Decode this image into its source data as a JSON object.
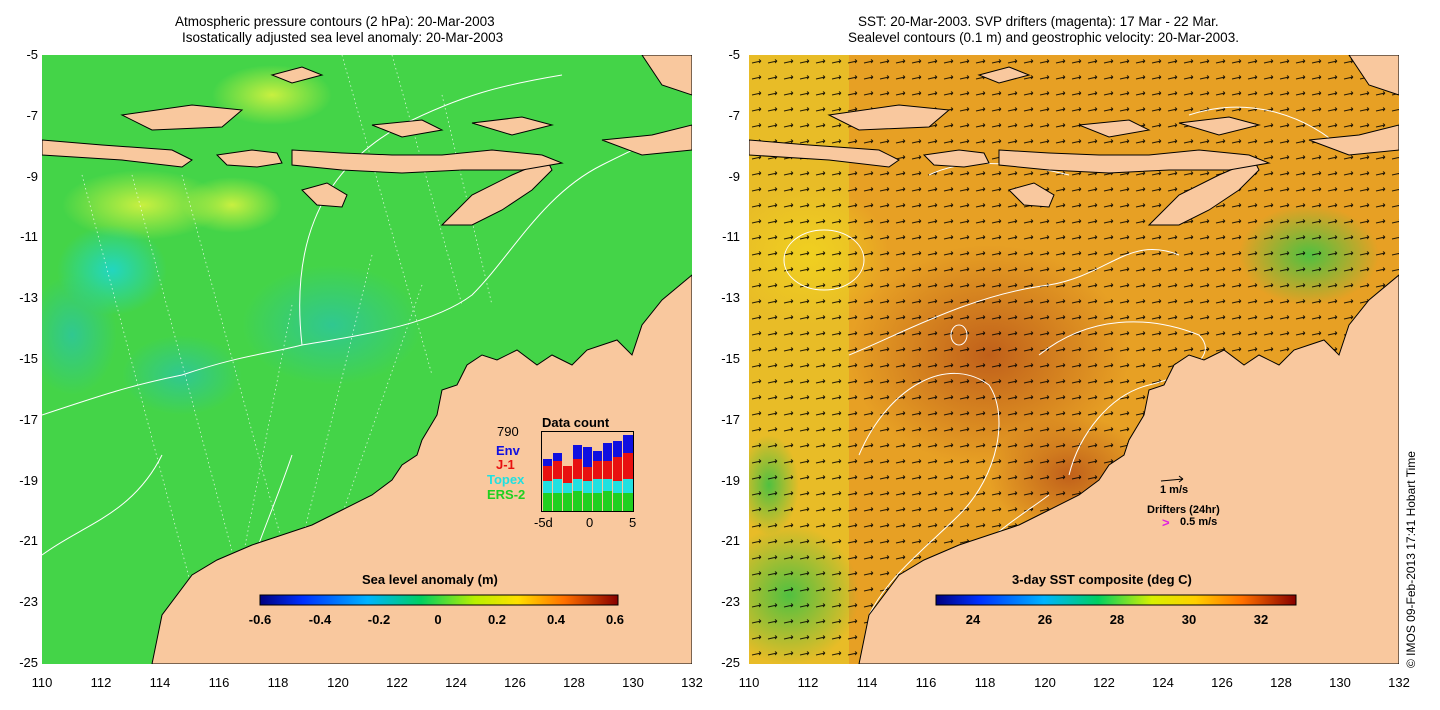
{
  "left_panel": {
    "title_line1": "Atmospheric pressure contours (2 hPa): 20-Mar-2003",
    "title_line2": "Isostatically adjusted sea level anomaly: 20-Mar-2003",
    "y_ticks": [
      "-5",
      "-7",
      "-9",
      "-11",
      "-13",
      "-15",
      "-17",
      "-19",
      "-21",
      "-23",
      "-25"
    ],
    "x_ticks": [
      "110",
      "112",
      "114",
      "116",
      "118",
      "120",
      "122",
      "124",
      "126",
      "128",
      "130",
      "132"
    ],
    "colorbar": {
      "title": "Sea level anomaly (m)",
      "ticks": [
        "-0.6",
        "-0.4",
        "-0.2",
        "0",
        "0.2",
        "0.4",
        "0.6"
      ],
      "range": [
        -0.6,
        0.6
      ]
    },
    "data_count": {
      "title": "Data count",
      "total": "790",
      "legend": [
        {
          "label": "Env",
          "color": "#1010e0"
        },
        {
          "label": "J-1",
          "color": "#e81010"
        },
        {
          "label": "Topex",
          "color": "#20e0e0"
        },
        {
          "label": "ERS-2",
          "color": "#20d020"
        }
      ],
      "x_ticks": [
        "-5d",
        "0",
        "5"
      ]
    }
  },
  "right_panel": {
    "title_line1": "SST: 20-Mar-2003. SVP drifters (magenta): 17 Mar - 22 Mar.",
    "title_line2": "Sealevel contours (0.1 m) and geostrophic velocity: 20-Mar-2003.",
    "y_ticks": [
      "-5",
      "-7",
      "-9",
      "-11",
      "-13",
      "-15",
      "-17",
      "-19",
      "-21",
      "-23",
      "-25"
    ],
    "x_ticks": [
      "110",
      "112",
      "114",
      "116",
      "118",
      "120",
      "122",
      "124",
      "126",
      "128",
      "130",
      "132"
    ],
    "colorbar": {
      "title": "3-day SST composite (deg C)",
      "ticks": [
        "24",
        "26",
        "28",
        "30",
        "32"
      ],
      "range": [
        23,
        33
      ]
    },
    "velocity_scale": "1 m/s",
    "drifters_label": "Drifters (24hr)",
    "drifter_symbol": ">",
    "drifter_speed": "0.5 m/s"
  },
  "credit": "© IMOS 09-Feb-2013 17:41 Hobart Time",
  "colors": {
    "land": "#f9c89e",
    "ocean_left": "#3ed24a",
    "ocean_right": "#e49822"
  }
}
